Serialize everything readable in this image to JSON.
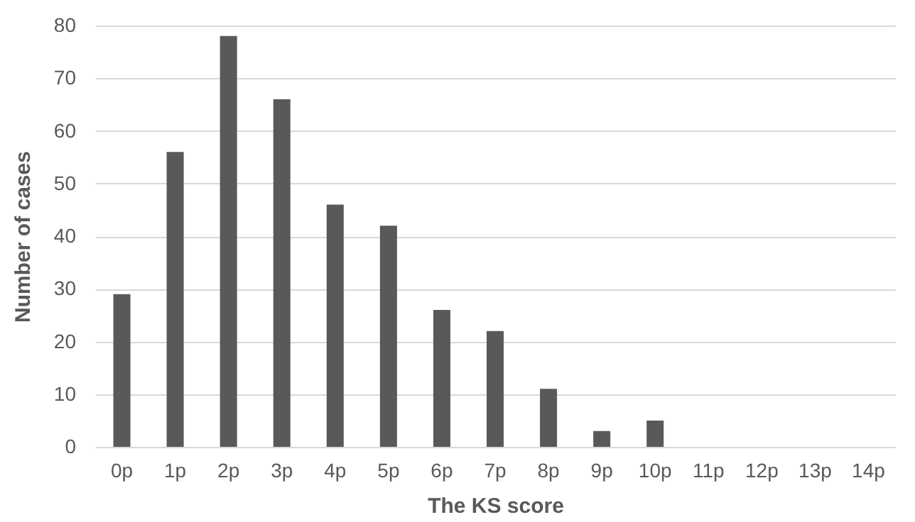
{
  "chart_data": {
    "type": "bar",
    "xlabel": "The KS score",
    "ylabel": "Number of cases",
    "categories": [
      "0p",
      "1p",
      "2p",
      "3p",
      "4p",
      "5p",
      "6p",
      "7p",
      "8p",
      "9p",
      "10p",
      "11p",
      "12p",
      "13p",
      "14p"
    ],
    "values": [
      29,
      56,
      78,
      66,
      46,
      42,
      26,
      22,
      11,
      3,
      5,
      0,
      0,
      0,
      0
    ],
    "color": "#595959",
    "ylim": [
      0,
      80
    ],
    "yticks": [
      0,
      10,
      20,
      30,
      40,
      50,
      60,
      70,
      80
    ],
    "grid": "y"
  }
}
